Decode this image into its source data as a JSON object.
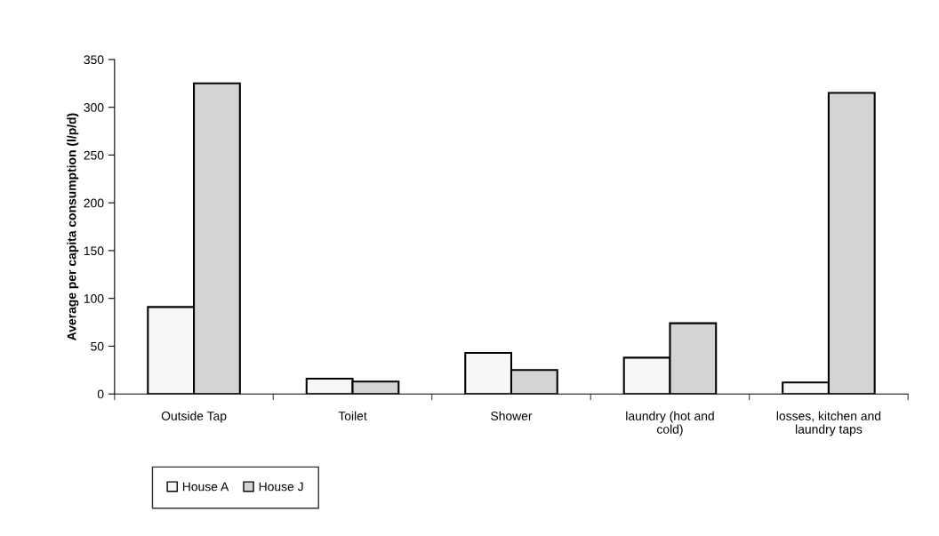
{
  "chart_data": {
    "type": "bar",
    "ylabel": "Average per capita consumption (l/p/d)",
    "categories": [
      "Outside Tap",
      "Toilet",
      "Shower",
      "laundry (hot and\ncold)",
      "losses, kitchen and\nlaundry taps"
    ],
    "series": [
      {
        "name": "House A",
        "color": "#f7f7f7",
        "values": [
          91,
          16,
          43,
          38,
          12
        ]
      },
      {
        "name": "House J",
        "color": "#d4d4d4",
        "values": [
          325,
          13,
          25,
          74,
          315
        ]
      }
    ],
    "ylim": [
      0,
      350
    ],
    "yticks": [
      0,
      50,
      100,
      150,
      200,
      250,
      300,
      350
    ],
    "grid": false,
    "legend": "bottom left"
  }
}
